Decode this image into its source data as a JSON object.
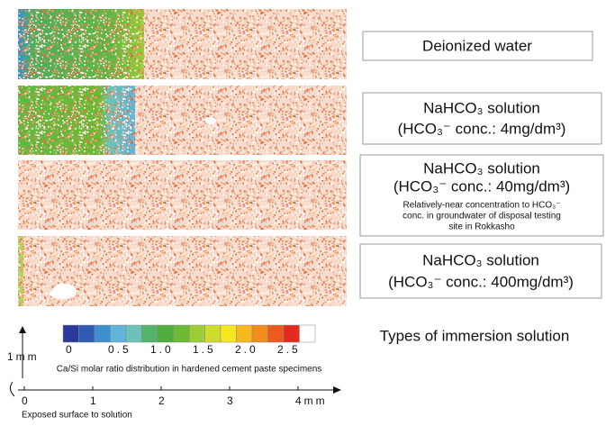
{
  "solutions": [
    {
      "lines": [
        "Deionized water"
      ]
    },
    {
      "lines": [
        "NaHCO₃ solution",
        "(HCO₃⁻ conc.: 4mg/dm³)"
      ]
    },
    {
      "lines": [
        "NaHCO₃ solution",
        "(HCO₃⁻ conc.: 40mg/dm³)"
      ],
      "note": [
        "Relatively-near concentration to HCO₃⁻",
        "conc. in groundwater of disposal testing",
        "site in Rokkasho"
      ]
    },
    {
      "lines": [
        "NaHCO₃ solution",
        "(HCO₃⁻ conc.: 400mg/dm³)"
      ]
    }
  ],
  "heading": "Types of immersion solution",
  "colorbar": {
    "caption": "Ca/Si molar ratio distribution in hardened cement paste specimens",
    "ticks": [
      0,
      0.5,
      {
        "value": 1,
        "label": "1.0"
      },
      1.5,
      {
        "value": 2,
        "label": "2.0"
      },
      2.5
    ],
    "colors": [
      "#2b3b9c",
      "#2f5bb5",
      "#3e8fd0",
      "#5fb4dc",
      "#6cc2b8",
      "#54b56a",
      "#4fae3c",
      "#6bbb33",
      "#9ccc36",
      "#cfdc2e",
      "#f4e61f",
      "#f6b81c",
      "#f28c1c",
      "#ec5a1e",
      "#e42a1f",
      "#ffffff"
    ]
  },
  "scale": {
    "vertical_label": "1mm",
    "ticks": [
      0,
      1,
      2,
      3,
      {
        "value": 4,
        "label": "4mm"
      }
    ],
    "caption": "Exposed surface to solution"
  }
}
